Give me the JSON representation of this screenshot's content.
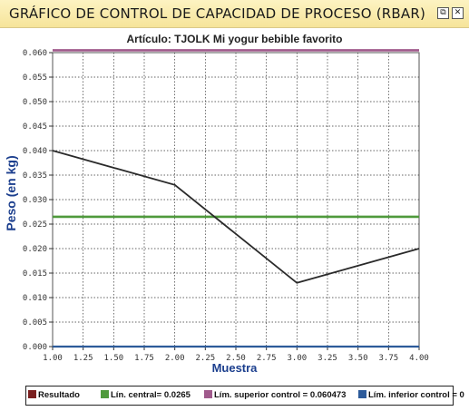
{
  "window": {
    "title": "GRÁFICO DE CONTROL DE CAPACIDAD DE PROCESO (RBAR)",
    "restore_icon": "restore-icon",
    "close_icon": "close-icon"
  },
  "chart_data": {
    "type": "line",
    "title": "Artículo: TJOLK Mi yogur bebible favorito",
    "xlabel": "Muestra",
    "ylabel": "Peso (en kg)",
    "xlim": [
      1.0,
      4.0
    ],
    "ylim": [
      0.0,
      0.06
    ],
    "grid": true,
    "legend_position": "bottom",
    "x_ticks": [
      "1.00",
      "1.25",
      "1.50",
      "1.75",
      "2.00",
      "2.25",
      "2.50",
      "2.75",
      "3.00",
      "3.25",
      "3.50",
      "3.75",
      "4.00"
    ],
    "y_ticks": [
      "0.000",
      "0.005",
      "0.010",
      "0.015",
      "0.020",
      "0.025",
      "0.030",
      "0.035",
      "0.040",
      "0.045",
      "0.050",
      "0.055",
      "0.060"
    ],
    "series": [
      {
        "name": "Resultado",
        "color": "#7a1f1f",
        "x": [
          1.0,
          2.0,
          3.0,
          4.0
        ],
        "values": [
          0.04,
          0.033,
          0.013,
          0.02
        ]
      },
      {
        "name": "Lín. central= 0.0265",
        "color": "#4f9a3c",
        "x": [
          1.0,
          4.0
        ],
        "values": [
          0.0265,
          0.0265
        ]
      },
      {
        "name": "Lím. superior control = 0.060473",
        "color": "#a05a8c",
        "x": [
          1.0,
          4.0
        ],
        "values": [
          0.060473,
          0.060473
        ]
      },
      {
        "name": "Lím. inferior control = 0",
        "color": "#2d5b9a",
        "x": [
          1.0,
          4.0
        ],
        "values": [
          0.0,
          0.0
        ]
      }
    ]
  }
}
